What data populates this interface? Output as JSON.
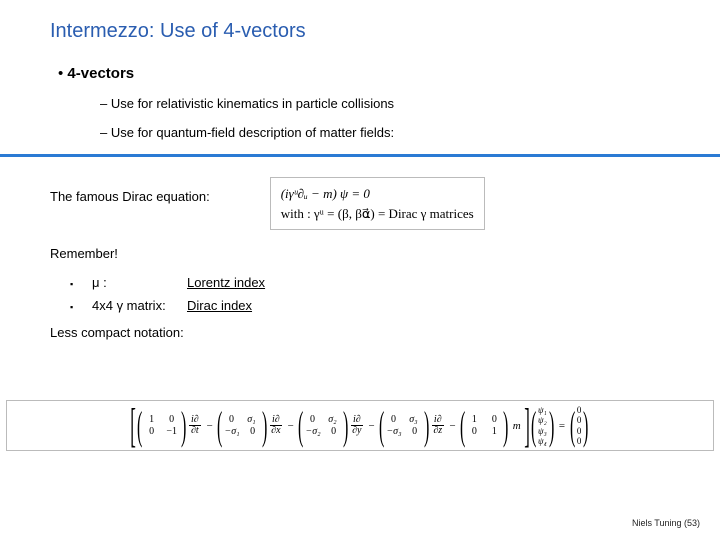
{
  "slide": {
    "title": "Intermezzo: Use of 4-vectors",
    "main_bullet": "4-vectors",
    "sub_bullets": [
      "Use for relativistic kinematics in particle collisions",
      "Use for quantum-field description of matter fields:"
    ],
    "dirac_intro": "The famous Dirac equation:",
    "dirac_eq_l1": "(iγᵘ∂ᵤ − m) ψ  =  0",
    "dirac_eq_l2": "with :  γᵘ = (β, βα⃗)  =  Dirac γ  matrices",
    "remember": "Remember!",
    "remember_items": [
      {
        "label": "μ :",
        "value": "Lorentz index"
      },
      {
        "label": "4x4 γ matrix:",
        "value": "Dirac index"
      }
    ],
    "less_compact": "Less compact notation:",
    "expanded": {
      "deriv_prefix": "i∂",
      "d_t": "∂t",
      "d_x": "∂x",
      "d_y": "∂y",
      "d_z": "∂z",
      "minus": "−",
      "eq": "=",
      "m": "m",
      "m00a": "1",
      "m00b": "0",
      "m00c": "0",
      "m00d": "−1",
      "s1": "σ₁",
      "s2": "σ₂",
      "s3": "σ₃",
      "ns1": "−σ₁",
      "ns2": "−σ₂",
      "ns3": "−σ₃",
      "zero": "0",
      "psi": [
        "ψ₁",
        "ψ₂",
        "ψ₃",
        "ψ₄"
      ],
      "zcol": [
        "0",
        "0",
        "0",
        "0"
      ]
    },
    "footer": "Niels Tuning (53)"
  },
  "colors": {
    "title": "#2a5db0",
    "rule": "#2a7ad4",
    "box_border": "#bbbbbb",
    "text": "#000000"
  }
}
